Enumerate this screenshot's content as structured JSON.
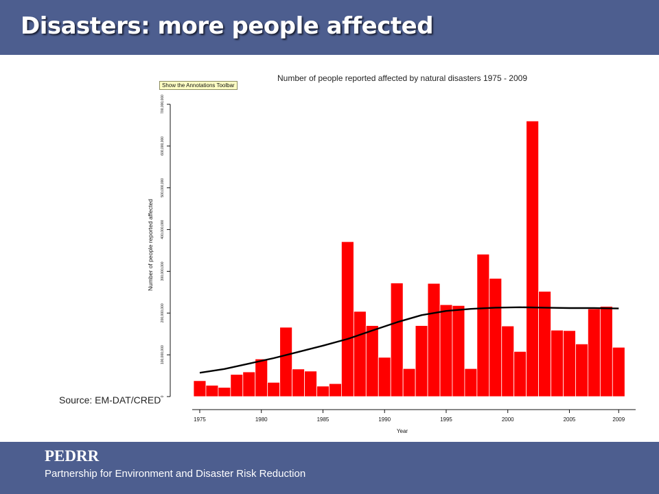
{
  "slide": {
    "title": "Disasters: more people affected",
    "source": "Source: EM-DAT/CRED",
    "org_name": "PEDRR",
    "org_full": "Partnership for Environment and Disaster Risk Reduction",
    "tooltip": "Show the Annotations Toolbar"
  },
  "colors": {
    "header_band": "#4d5e8f",
    "bars": "#ff0000",
    "trend": "#000000"
  },
  "chart_data": {
    "type": "bar",
    "title": "Number of people reported affected by natural disasters 1975 - 2009",
    "xlabel": "Year",
    "ylabel": "Number of people reported affected",
    "x": [
      1975,
      1976,
      1977,
      1978,
      1979,
      1980,
      1981,
      1982,
      1983,
      1984,
      1985,
      1986,
      1987,
      1988,
      1989,
      1990,
      1991,
      1992,
      1993,
      1994,
      1995,
      1996,
      1997,
      1998,
      1999,
      2000,
      2001,
      2002,
      2003,
      2004,
      2005,
      2006,
      2007,
      2008,
      2009
    ],
    "values": [
      38000000,
      27000000,
      22000000,
      53000000,
      59000000,
      90000000,
      34000000,
      166000000,
      66000000,
      61000000,
      25000000,
      31000000,
      371000000,
      204000000,
      170000000,
      94000000,
      272000000,
      67000000,
      170000000,
      271000000,
      220000000,
      218000000,
      67000000,
      341000000,
      283000000,
      169000000,
      108000000,
      660000000,
      252000000,
      159000000,
      158000000,
      126000000,
      210000000,
      216000000,
      118000000
    ],
    "trend": {
      "x": [
        1975,
        1977,
        1979,
        1981,
        1983,
        1985,
        1987,
        1989,
        1991,
        1993,
        1995,
        1997,
        1999,
        2001,
        2003,
        2005,
        2007,
        2009
      ],
      "values": [
        57000000,
        66000000,
        79000000,
        92000000,
        107000000,
        122000000,
        138000000,
        158000000,
        178000000,
        195000000,
        205000000,
        210000000,
        213000000,
        214000000,
        213000000,
        212000000,
        212000000,
        211000000
      ]
    },
    "x_ticks": [
      1975,
      1980,
      1985,
      1990,
      1995,
      2000,
      2005,
      2009
    ],
    "y_ticks": [
      0,
      100000000,
      200000000,
      300000000,
      400000000,
      500000000,
      600000000,
      700000000
    ],
    "y_tick_labels": [
      "0",
      "100,000,000",
      "200,000,000",
      "300,000,000",
      "400,000,000",
      "500,000,000",
      "600,000,000",
      "700,000,000"
    ],
    "ylim": [
      0,
      700000000
    ],
    "grid": false,
    "legend": "none"
  }
}
